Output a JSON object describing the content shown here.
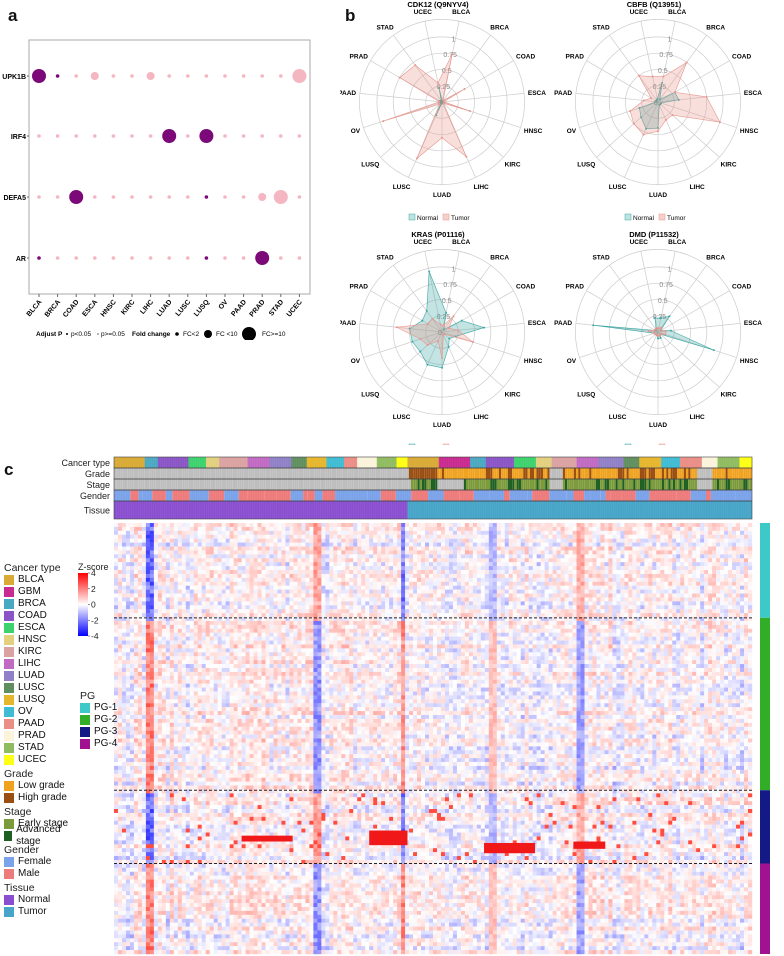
{
  "panels": {
    "a": "a",
    "b": "b",
    "c": "c"
  },
  "chart_data": [
    {
      "type": "scatter",
      "subtype": "dot-plot",
      "panel": "a",
      "title": "",
      "xlabel": "",
      "ylabel": "",
      "categories": [
        "BLCA",
        "BRCA",
        "COAD",
        "ESCA",
        "HNSC",
        "KIRC",
        "LIHC",
        "LUAD",
        "LUSC",
        "LUSQ",
        "OV",
        "PAAD",
        "PRAD",
        "STAD",
        "UCEC"
      ],
      "genes": [
        "UPK1B",
        "IRF4",
        "DEFA5",
        "AR"
      ],
      "size_levels": {
        "small": "FC<2",
        "medium": "FC <10",
        "large": "FC>=10"
      },
      "significance_levels": {
        "sig": "p<0.05",
        "ns": "p>=0.05"
      },
      "colors": {
        "sig": "#7b0a78",
        "ns": "#f4b6c0"
      },
      "points": {
        "UPK1B": [
          [
            "sig",
            "large"
          ],
          [
            "sig",
            "small"
          ],
          [
            "ns",
            "small"
          ],
          [
            "ns",
            "medium"
          ],
          [
            "ns",
            "small"
          ],
          [
            "ns",
            "small"
          ],
          [
            "ns",
            "medium"
          ],
          [
            "ns",
            "small"
          ],
          [
            "ns",
            "small"
          ],
          [
            "ns",
            "small"
          ],
          [
            "ns",
            "small"
          ],
          [
            "ns",
            "small"
          ],
          [
            "ns",
            "small"
          ],
          [
            "ns",
            "small"
          ],
          [
            "ns",
            "large"
          ]
        ],
        "IRF4": [
          [
            "ns",
            "small"
          ],
          [
            "ns",
            "small"
          ],
          [
            "ns",
            "small"
          ],
          [
            "ns",
            "small"
          ],
          [
            "ns",
            "small"
          ],
          [
            "ns",
            "small"
          ],
          [
            "ns",
            "small"
          ],
          [
            "sig",
            "large"
          ],
          [
            "ns",
            "small"
          ],
          [
            "sig",
            "large"
          ],
          [
            "ns",
            "small"
          ],
          [
            "ns",
            "small"
          ],
          [
            "ns",
            "small"
          ],
          [
            "ns",
            "small"
          ],
          [
            "ns",
            "small"
          ]
        ],
        "DEFA5": [
          [
            "ns",
            "small"
          ],
          [
            "ns",
            "small"
          ],
          [
            "sig",
            "large"
          ],
          [
            "ns",
            "small"
          ],
          [
            "ns",
            "small"
          ],
          [
            "ns",
            "small"
          ],
          [
            "ns",
            "small"
          ],
          [
            "ns",
            "small"
          ],
          [
            "ns",
            "small"
          ],
          [
            "sig",
            "small"
          ],
          [
            "ns",
            "small"
          ],
          [
            "ns",
            "small"
          ],
          [
            "ns",
            "medium"
          ],
          [
            "ns",
            "large"
          ],
          [
            "ns",
            "small"
          ]
        ],
        "AR": [
          [
            "sig",
            "small"
          ],
          [
            "ns",
            "small"
          ],
          [
            "ns",
            "small"
          ],
          [
            "ns",
            "small"
          ],
          [
            "ns",
            "small"
          ],
          [
            "ns",
            "small"
          ],
          [
            "ns",
            "small"
          ],
          [
            "ns",
            "small"
          ],
          [
            "ns",
            "small"
          ],
          [
            "sig",
            "small"
          ],
          [
            "ns",
            "small"
          ],
          [
            "ns",
            "small"
          ],
          [
            "sig",
            "large"
          ],
          [
            "ns",
            "small"
          ],
          [
            "ns",
            "small"
          ]
        ]
      },
      "legend": {
        "adjust_p_label": "Adjust P",
        "p_sig": "p<0.05",
        "p_ns": "p>=0.05",
        "fold_change_label": "Fold change",
        "fc_small": "FC<2",
        "fc_medium": "FC <10",
        "fc_large": "FC>=10",
        "placement": "bottom"
      }
    },
    {
      "type": "radar",
      "panel": "b",
      "axes": [
        "BLCA",
        "BRCA",
        "COAD",
        "ESCA",
        "HNSC",
        "KIRC",
        "LIHC",
        "LUAD",
        "LUSC",
        "LUSQ",
        "OV",
        "PAAD",
        "PRAD",
        "STAD",
        "UCEC"
      ],
      "rlim": [
        0,
        1
      ],
      "rticks": [
        "0",
        "0.25",
        "0.5",
        "0.75",
        "1"
      ],
      "legend": [
        "Normal",
        "Tumor"
      ],
      "legend_placement": "bottom",
      "colors": {
        "Normal": "#3aa7a3",
        "Tumor": "#e8958c"
      },
      "charts": [
        {
          "title": "CDK12 (Q9NYV4)",
          "series": [
            {
              "name": "Normal",
              "values": [
                0.02,
                0.02,
                0.02,
                0.02,
                0.02,
                0.02,
                0.02,
                0.02,
                0.22,
                0.02,
                0.02,
                0.02,
                0.02,
                0.02,
                0.22
              ]
            },
            {
              "name": "Tumor",
              "values": [
                0.75,
                0.03,
                0.4,
                0.03,
                0.45,
                0.03,
                0.92,
                0.55,
                0.95,
                0.05,
                0.95,
                0.04,
                0.75,
                0.7,
                0.3
              ]
            }
          ]
        },
        {
          "title": "CBFB (Q13951)",
          "series": [
            {
              "name": "Normal",
              "values": [
                0.3,
                0.05,
                0.3,
                0.32,
                0.05,
                0.05,
                0.05,
                0.4,
                0.45,
                0.35,
                0.3,
                0.03,
                0.03,
                0.03,
                0.05
              ]
            },
            {
              "name": "Tumor",
              "values": [
                0.4,
                0.75,
                0.3,
                0.75,
                1.0,
                0.3,
                0.3,
                0.45,
                0.55,
                0.5,
                0.45,
                0.22,
                0.12,
                0.5,
                0.4
              ]
            }
          ]
        },
        {
          "title": "KRAS (P01116)",
          "series": [
            {
              "name": "Normal",
              "values": [
                0.3,
                0.05,
                0.35,
                0.65,
                0.22,
                0.15,
                0.25,
                0.55,
                0.55,
                0.45,
                0.48,
                0.5,
                0.35,
                0.4,
                0.95
              ]
            },
            {
              "name": "Tumor",
              "values": [
                0.1,
                0.3,
                0.12,
                0.25,
                0.5,
                0.05,
                0.05,
                0.4,
                0.15,
                0.3,
                0.35,
                0.7,
                0.25,
                0.25,
                0.12
              ]
            }
          ]
        },
        {
          "title": "DMD (P11532)",
          "series": [
            {
              "name": "Normal",
              "values": [
                0.22,
                0.3,
                0.05,
                0.2,
                0.9,
                0.05,
                0.1,
                0.1,
                0.05,
                0.05,
                0.06,
                1.0,
                0.05,
                0.05,
                0.22
              ]
            },
            {
              "name": "Tumor",
              "values": [
                0.06,
                0.08,
                0.06,
                0.12,
                0.12,
                0.05,
                0.06,
                0.06,
                0.05,
                0.05,
                0.06,
                0.15,
                0.06,
                0.06,
                0.06
              ]
            }
          ]
        }
      ]
    },
    {
      "type": "heatmap",
      "panel": "c",
      "title": "",
      "annotation_rows": [
        "Cancer type",
        "Grade",
        "Stage",
        "Gender",
        "Tissue"
      ],
      "colorbar": {
        "title": "Z-score",
        "ticks": [
          "4",
          "2",
          "0",
          "-2",
          "-4"
        ],
        "range": [
          -4,
          4
        ],
        "colors": [
          "#0000ff",
          "#ffffff",
          "#ff0000"
        ]
      },
      "row_groups": {
        "title": "PG",
        "items": [
          {
            "label": "PG-1",
            "color": "#3ec9c9",
            "fraction": 0.22
          },
          {
            "label": "PG-2",
            "color": "#32ad28",
            "fraction": 0.4
          },
          {
            "label": "PG-3",
            "color": "#131a86",
            "fraction": 0.17
          },
          {
            "label": "PG-4",
            "color": "#a0128f",
            "fraction": 0.21
          }
        ]
      },
      "legends": [
        {
          "title": "Cancer type",
          "items": [
            {
              "label": "BLCA",
              "color": "#d9aa35"
            },
            {
              "label": "GBM",
              "color": "#c92a8f"
            },
            {
              "label": "BRCA",
              "color": "#4aa9c2"
            },
            {
              "label": "COAD",
              "color": "#8a55c6"
            },
            {
              "label": "ESCA",
              "color": "#3ed26e"
            },
            {
              "label": "HNSC",
              "color": "#e3d07e"
            },
            {
              "label": "KIRC",
              "color": "#dba2a2"
            },
            {
              "label": "LIHC",
              "color": "#c16ac3"
            },
            {
              "label": "LUAD",
              "color": "#9080c7"
            },
            {
              "label": "LUSC",
              "color": "#5f8f5f"
            },
            {
              "label": "LUSQ",
              "color": "#e6b72d"
            },
            {
              "label": "OV",
              "color": "#3fbcd3"
            },
            {
              "label": "PAAD",
              "color": "#ea8e86"
            },
            {
              "label": "PRAD",
              "color": "#fbf3dc"
            },
            {
              "label": "STAD",
              "color": "#8fbc60"
            },
            {
              "label": "UCEC",
              "color": "#ffff14"
            }
          ]
        },
        {
          "title": "Grade",
          "items": [
            {
              "label": "Low grade",
              "color": "#f0a21e"
            },
            {
              "label": "High grade",
              "color": "#9a4e10"
            }
          ]
        },
        {
          "title": "Stage",
          "items": [
            {
              "label": "Early stage",
              "color": "#7b9a3a"
            },
            {
              "label": "Advanced stage",
              "color": "#1e5f22"
            }
          ]
        },
        {
          "title": "Gender",
          "items": [
            {
              "label": "Female",
              "color": "#7ba3ea"
            },
            {
              "label": "Male",
              "color": "#ee7b7b"
            }
          ]
        },
        {
          "title": "Tissue",
          "items": [
            {
              "label": "Normal",
              "color": "#8a4fd0"
            },
            {
              "label": "Tumor",
              "color": "#46a5c8"
            }
          ]
        }
      ],
      "normal_fraction": 0.46,
      "cancer_type_blocks_normal": [
        [
          "BLCA",
          0.14
        ],
        [
          "BRCA",
          0.06
        ],
        [
          "COAD",
          0.14
        ],
        [
          "ESCA",
          0.08
        ],
        [
          "HNSC",
          0.06
        ],
        [
          "KIRC",
          0.13
        ],
        [
          "LIHC",
          0.1
        ],
        [
          "LUAD",
          0.1
        ],
        [
          "LUSC",
          0.07
        ],
        [
          "LUSQ",
          0.09
        ],
        [
          "OV",
          0.08
        ],
        [
          "PAAD",
          0.06
        ],
        [
          "PRAD",
          0.09
        ],
        [
          "STAD",
          0.09
        ],
        [
          "UCEC",
          0.05
        ]
      ],
      "cancer_type_blocks_tumor": [
        [
          "BLCA",
          0.1
        ],
        [
          "GBM",
          0.1
        ],
        [
          "BRCA",
          0.05
        ],
        [
          "COAD",
          0.09
        ],
        [
          "ESCA",
          0.07
        ],
        [
          "HNSC",
          0.05
        ],
        [
          "KIRC",
          0.08
        ],
        [
          "LIHC",
          0.07
        ],
        [
          "LUAD",
          0.08
        ],
        [
          "LUSC",
          0.05
        ],
        [
          "LUSQ",
          0.07
        ],
        [
          "OV",
          0.06
        ],
        [
          "PAAD",
          0.07
        ],
        [
          "PRAD",
          0.05
        ],
        [
          "STAD",
          0.07
        ],
        [
          "UCEC",
          0.04
        ]
      ]
    }
  ]
}
